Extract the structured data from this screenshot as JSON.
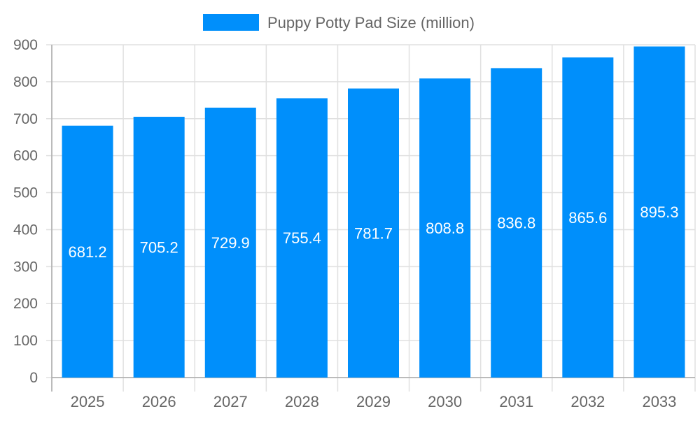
{
  "chart_data": {
    "type": "bar",
    "categories": [
      "2025",
      "2026",
      "2027",
      "2028",
      "2029",
      "2030",
      "2031",
      "2032",
      "2033"
    ],
    "series": [
      {
        "name": "Puppy Potty Pad Size (million)",
        "values": [
          681.2,
          705.2,
          729.9,
          755.4,
          781.7,
          808.8,
          836.8,
          865.6,
          895.3
        ],
        "color": "#008ffb"
      }
    ],
    "yticks": [
      "0",
      "100",
      "200",
      "300",
      "400",
      "500",
      "600",
      "700",
      "800",
      "900"
    ],
    "ylim": [
      0,
      900
    ],
    "grid": true,
    "legend": "top-center",
    "data_labels": true
  }
}
